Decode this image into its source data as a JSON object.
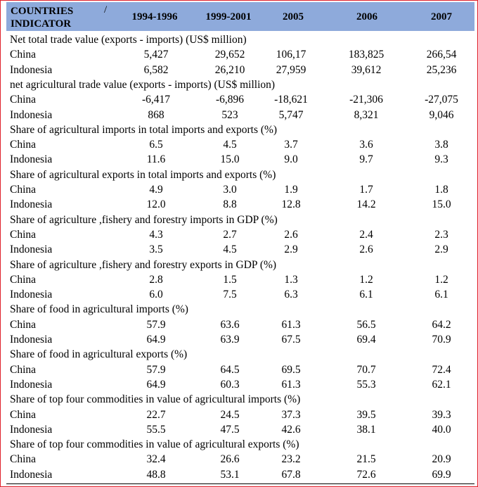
{
  "table": {
    "header": {
      "countries": "COUNTRIES",
      "slash": "/",
      "indicator": "INDICATOR",
      "years": [
        "1994-1996",
        "1999-2001",
        "2005",
        "2006",
        "2007"
      ]
    },
    "sections": [
      {
        "title": "Net total trade value (exports - imports) (US$ million)",
        "rows": [
          {
            "country": "China",
            "values": [
              "5,427",
              "29,652",
              "106,17",
              "183,825",
              "266,54"
            ]
          },
          {
            "country": "Indonesia",
            "values": [
              "6,582",
              "26,210",
              "27,959",
              "39,612",
              "25,236"
            ]
          }
        ]
      },
      {
        "title": "net agricultural trade value (exports - imports) (US$ million)",
        "rows": [
          {
            "country": "China",
            "values": [
              "-6,417",
              "-6,896",
              "-18,621",
              "-21,306",
              "-27,075"
            ]
          },
          {
            "country": "Indonesia",
            "values": [
              "868",
              "523",
              "5,747",
              "8,321",
              "9,046"
            ]
          }
        ]
      },
      {
        "title": "Share of agricultural imports in total imports and exports (%)",
        "rows": [
          {
            "country": "China",
            "values": [
              "6.5",
              "4.5",
              "3.7",
              "3.6",
              "3.8"
            ]
          },
          {
            "country": "Indonesia",
            "values": [
              "11.6",
              "15.0",
              "9.0",
              "9.7",
              "9.3"
            ]
          }
        ]
      },
      {
        "title": "Share of agricultural exports in total imports and exports (%)",
        "rows": [
          {
            "country": "China",
            "values": [
              "4.9",
              "3.0",
              "1.9",
              "1.7",
              "1.8"
            ]
          },
          {
            "country": "Indonesia",
            "values": [
              "12.0",
              "8.8",
              "12.8",
              "14.2",
              "15.0"
            ]
          }
        ]
      },
      {
        "title": "Share of agriculture ,fishery and forestry imports in GDP (%)",
        "rows": [
          {
            "country": "China",
            "values": [
              "4.3",
              "2.7",
              "2.6",
              "2.4",
              "2.3"
            ]
          },
          {
            "country": "Indonesia",
            "values": [
              "3.5",
              "4.5",
              "2.9",
              "2.6",
              "2.9"
            ]
          }
        ]
      },
      {
        "title": "Share of agriculture ,fishery and forestry exports in GDP (%)",
        "rows": [
          {
            "country": "China",
            "values": [
              "2.8",
              "1.5",
              "1.3",
              "1.2",
              "1.2"
            ]
          },
          {
            "country": "Indonesia",
            "values": [
              "6.0",
              "7.5",
              "6.3",
              "6.1",
              "6.1"
            ]
          }
        ]
      },
      {
        "title": "Share of food in agricultural imports  (%)",
        "rows": [
          {
            "country": "China",
            "values": [
              "57.9",
              "63.6",
              "61.3",
              "56.5",
              "64.2"
            ]
          },
          {
            "country": "Indonesia",
            "values": [
              "64.9",
              "63.9",
              "67.5",
              "69.4",
              "70.9"
            ]
          }
        ]
      },
      {
        "title": "Share of food in agricultural exports (%)",
        "rows": [
          {
            "country": "China",
            "values": [
              "57.9",
              "64.5",
              "69.5",
              "70.7",
              "72.4"
            ]
          },
          {
            "country": "Indonesia",
            "values": [
              "64.9",
              "60.3",
              "61.3",
              "55.3",
              "62.1"
            ]
          }
        ]
      },
      {
        "title": "Share of top four commodities in value of agricultural imports (%)",
        "rows": [
          {
            "country": "China",
            "values": [
              "22.7",
              "24.5",
              "37.3",
              "39.5",
              "39.3"
            ]
          },
          {
            "country": "Indonesia",
            "values": [
              "55.5",
              "47.5",
              "42.6",
              "38.1",
              "40.0"
            ]
          }
        ]
      },
      {
        "title": "Share of top four commodities in value of agricultural exports (%)",
        "rows": [
          {
            "country": "China",
            "values": [
              "32.4",
              "26.6",
              "23.2",
              "21.5",
              "20.9"
            ]
          },
          {
            "country": "Indonesia",
            "values": [
              "48.8",
              "53.1",
              "67.8",
              "72.6",
              "69.9"
            ]
          }
        ]
      }
    ]
  }
}
